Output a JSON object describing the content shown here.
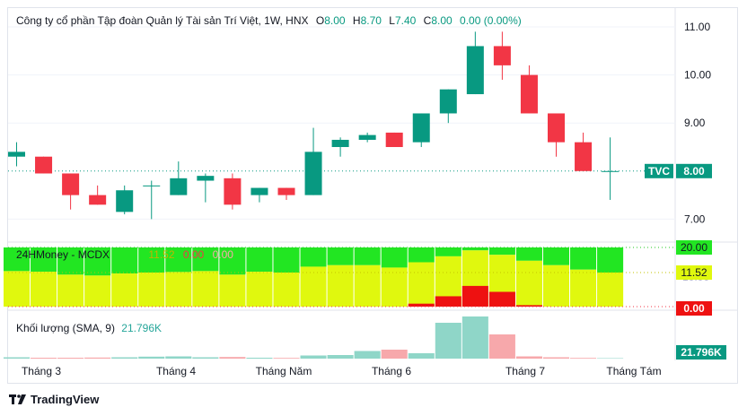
{
  "legend": {
    "title": "Công ty cổ phần Tập đoàn Quản lý Tài sản Trí Việt, 1W, HNX",
    "o_label": "O",
    "o_value": "8.00",
    "h_label": "H",
    "h_value": "8.70",
    "l_label": "L",
    "l_value": "7.40",
    "c_label": "C",
    "c_value": "8.00",
    "change": "0.00 (0.00%)"
  },
  "price_axis": [
    "11.00",
    "10.00",
    "9.00",
    "7.00"
  ],
  "last_price": {
    "symbol": "TVC",
    "value": "8.00"
  },
  "indicator": {
    "title": "24HMoney - MCDX",
    "v1": "11.52",
    "v2": "0.00",
    "v3": "0.00",
    "axis_top": "20.00",
    "axis_mid": "11.52",
    "axis_bottom": "0.00",
    "axis_hidden": "10.00"
  },
  "volume": {
    "title": "Khối lượng (SMA, 9)",
    "value": "21.796K",
    "axis_label": "21.796K"
  },
  "time_axis": [
    "Tháng 3",
    "Tháng 4",
    "Tháng Năm",
    "Tháng 6",
    "Tháng 7",
    "Tháng Tám"
  ],
  "brand": "TradingView",
  "colors": {
    "up": "#089981",
    "down": "#f23645",
    "green": "#22e622",
    "yellow": "#e0f80e",
    "red": "#ee1111"
  },
  "chart_data": {
    "type": "candlestick",
    "interval": "1W",
    "ylim": [
      6.6,
      11.15
    ],
    "candles": [
      {
        "o": 8.3,
        "h": 8.6,
        "l": 8.1,
        "c": 8.4
      },
      {
        "o": 8.3,
        "h": 8.3,
        "l": 7.95,
        "c": 7.95
      },
      {
        "o": 7.95,
        "h": 7.95,
        "l": 7.2,
        "c": 7.5
      },
      {
        "o": 7.5,
        "h": 7.7,
        "l": 7.3,
        "c": 7.3
      },
      {
        "o": 7.15,
        "h": 7.7,
        "l": 7.1,
        "c": 7.6
      },
      {
        "o": 7.7,
        "h": 7.8,
        "l": 7.0,
        "c": 7.7
      },
      {
        "o": 7.5,
        "h": 8.2,
        "l": 7.5,
        "c": 7.85
      },
      {
        "o": 7.8,
        "h": 7.95,
        "l": 7.35,
        "c": 7.9
      },
      {
        "o": 7.85,
        "h": 7.95,
        "l": 7.2,
        "c": 7.3
      },
      {
        "o": 7.5,
        "h": 7.65,
        "l": 7.35,
        "c": 7.65
      },
      {
        "o": 7.65,
        "h": 7.65,
        "l": 7.4,
        "c": 7.5
      },
      {
        "o": 7.5,
        "h": 8.9,
        "l": 7.5,
        "c": 8.4
      },
      {
        "o": 8.5,
        "h": 8.7,
        "l": 8.3,
        "c": 8.65
      },
      {
        "o": 8.65,
        "h": 8.8,
        "l": 8.6,
        "c": 8.75
      },
      {
        "o": 8.8,
        "h": 8.8,
        "l": 8.5,
        "c": 8.5
      },
      {
        "o": 8.6,
        "h": 9.2,
        "l": 8.5,
        "c": 9.2
      },
      {
        "o": 9.2,
        "h": 9.7,
        "l": 9.0,
        "c": 9.7
      },
      {
        "o": 9.6,
        "h": 10.9,
        "l": 9.6,
        "c": 10.6
      },
      {
        "o": 10.6,
        "h": 10.9,
        "l": 9.9,
        "c": 10.2
      },
      {
        "o": 10.0,
        "h": 10.2,
        "l": 9.2,
        "c": 9.2
      },
      {
        "o": 9.2,
        "h": 9.2,
        "l": 8.3,
        "c": 8.6
      },
      {
        "o": 8.6,
        "h": 8.8,
        "l": 8.0,
        "c": 8.0
      },
      {
        "o": 8.0,
        "h": 8.7,
        "l": 7.4,
        "c": 8.0
      }
    ],
    "mcdx": {
      "ylim": [
        0,
        20
      ],
      "green_top": 20,
      "yellow": [
        12.0,
        11.8,
        10.8,
        10.5,
        11.2,
        11.5,
        11.7,
        12.0,
        10.8,
        11.8,
        11.5,
        13.5,
        14.0,
        14.0,
        13.2,
        15.0,
        17.0,
        19.0,
        17.5,
        15.5,
        14.0,
        12.5,
        11.52
      ],
      "red": [
        0,
        0,
        0,
        0,
        0,
        0,
        0,
        0,
        0,
        0,
        0,
        0,
        0,
        0,
        0,
        1.0,
        3.5,
        7.0,
        5.0,
        0.5,
        0,
        0,
        0
      ]
    },
    "volume": {
      "ylim": [
        0,
        50
      ],
      "values": [
        1.5,
        1.0,
        1.0,
        1.2,
        1.5,
        2.2,
        2.5,
        1.5,
        1.8,
        1.0,
        0.8,
        3.5,
        4.0,
        8.5,
        10.0,
        6.0,
        40.0,
        47.0,
        27.0,
        2.5,
        1.5,
        0.8,
        0.5
      ],
      "sma": 21.796
    }
  }
}
